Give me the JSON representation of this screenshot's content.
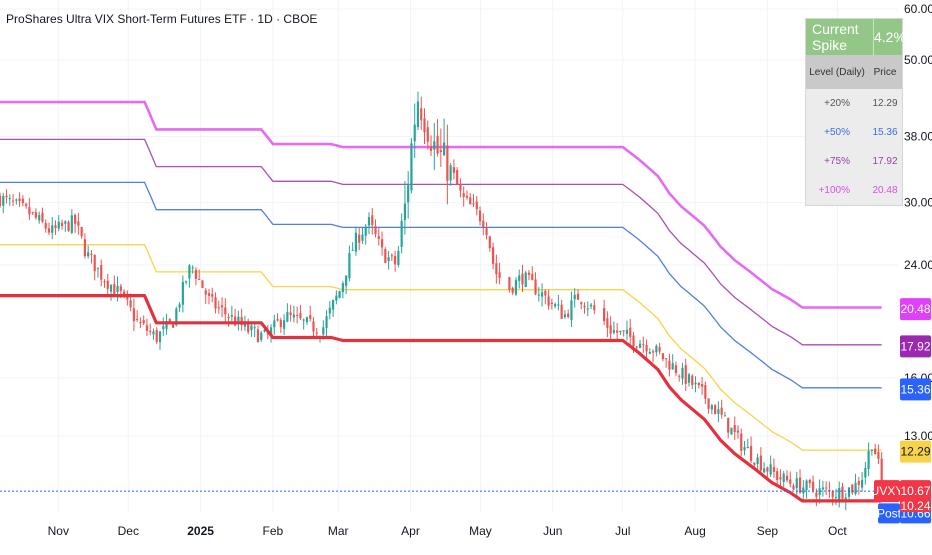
{
  "title": "ProShares Ultra VIX Short-Term Futures ETF · 1D · CBOE",
  "colors": {
    "support": "#e5313b",
    "level20": "#f7d44a",
    "level50": "#4f7fe0",
    "level75": "#a94fb5",
    "level100": "#e36cf0",
    "up": "#26a69a",
    "down": "#ef5350"
  },
  "spike_table": {
    "header_label": "Current Spike",
    "header_value": "4.2%",
    "col_level": "Level (Daily)",
    "col_price": "Price",
    "rows": [
      {
        "level": "+20%",
        "price": "12.29",
        "color": "#555555"
      },
      {
        "level": "+50%",
        "price": "15.36",
        "color": "#3d6fe0"
      },
      {
        "level": "+75%",
        "price": "17.92",
        "color": "#9b3fb0"
      },
      {
        "level": "+100%",
        "price": "20.48",
        "color": "#d94fe6"
      }
    ]
  },
  "price_tags": [
    {
      "label": "20.48",
      "value": 20.48,
      "bg": "#e040fb",
      "fg": "#ffffff"
    },
    {
      "label": "17.92",
      "value": 17.92,
      "bg": "#9c27b0",
      "fg": "#ffffff"
    },
    {
      "label": "15.36",
      "value": 15.36,
      "bg": "#2962ff",
      "fg": "#ffffff"
    },
    {
      "label": "12.29",
      "value": 12.29,
      "bg": "#f9d347",
      "fg": "#131722"
    }
  ],
  "symbol_tag": {
    "symbol": "UVXY",
    "price": "10.67",
    "value": 10.67,
    "bg": "#f23645"
  },
  "post_tag": {
    "label": "Post",
    "price": "10.66",
    "value": 10.66,
    "bg": "#2962ff"
  },
  "low_tag": {
    "price": "10.24",
    "value": 10.24,
    "bg": "#f23645"
  },
  "chart_data": {
    "type": "candlestick",
    "y_scale": "log",
    "ylim": [
      9.9,
      62
    ],
    "y_ticks": [
      {
        "label": "60.00",
        "value": 60
      },
      {
        "label": "50.00",
        "value": 50
      },
      {
        "label": "38.00",
        "value": 38
      },
      {
        "label": "30.00",
        "value": 30
      },
      {
        "label": "24.00",
        "value": 24
      },
      {
        "label": "16.00",
        "value": 16
      },
      {
        "label": "13.00",
        "value": 13
      }
    ],
    "x_ticks": [
      {
        "label": "Nov",
        "day": 13,
        "bold": false
      },
      {
        "label": "Dec",
        "day": 43,
        "bold": false
      },
      {
        "label": "2025",
        "day": 74,
        "bold": true
      },
      {
        "label": "Feb",
        "day": 105,
        "bold": false
      },
      {
        "label": "Mar",
        "day": 133,
        "bold": false
      },
      {
        "label": "Apr",
        "day": 164,
        "bold": false
      },
      {
        "label": "May",
        "day": 194,
        "bold": false
      },
      {
        "label": "Jun",
        "day": 225,
        "bold": false
      },
      {
        "label": "Jul",
        "day": 255,
        "bold": false
      },
      {
        "label": "Aug",
        "day": 286,
        "bold": false
      },
      {
        "label": "Sep",
        "day": 317,
        "bold": false
      },
      {
        "label": "Oct",
        "day": 347,
        "bold": false
      }
    ],
    "x_range_days": [
      -12,
      373
    ],
    "close_anchors": [
      [
        -12,
        30.5
      ],
      [
        0,
        29
      ],
      [
        10,
        27
      ],
      [
        20,
        28
      ],
      [
        25,
        25
      ],
      [
        32,
        23
      ],
      [
        40,
        21.5
      ],
      [
        47,
        19.5
      ],
      [
        55,
        18.5
      ],
      [
        62,
        19.5
      ],
      [
        70,
        24
      ],
      [
        78,
        21
      ],
      [
        86,
        20
      ],
      [
        94,
        19
      ],
      [
        102,
        18.5
      ],
      [
        110,
        20
      ],
      [
        118,
        19.5
      ],
      [
        126,
        19
      ],
      [
        134,
        22
      ],
      [
        140,
        26
      ],
      [
        146,
        28
      ],
      [
        152,
        25
      ],
      [
        158,
        24
      ],
      [
        162,
        30
      ],
      [
        167,
        44
      ],
      [
        171,
        40
      ],
      [
        175,
        36
      ],
      [
        181,
        34
      ],
      [
        186,
        30.5
      ],
      [
        192,
        29
      ],
      [
        196,
        28
      ],
      [
        200,
        23.5
      ],
      [
        206,
        22
      ],
      [
        212,
        23
      ],
      [
        218,
        22
      ],
      [
        224,
        21
      ],
      [
        230,
        20
      ],
      [
        236,
        21.5
      ],
      [
        242,
        20.5
      ],
      [
        250,
        19
      ],
      [
        258,
        18.5
      ],
      [
        266,
        18
      ],
      [
        274,
        17
      ],
      [
        282,
        16
      ],
      [
        290,
        15
      ],
      [
        298,
        13.8
      ],
      [
        306,
        12.6
      ],
      [
        314,
        11.8
      ],
      [
        322,
        11.2
      ],
      [
        330,
        10.9
      ],
      [
        338,
        10.7
      ],
      [
        346,
        10.6
      ],
      [
        354,
        10.8
      ],
      [
        358,
        11.3
      ],
      [
        362,
        12.8
      ],
      [
        365,
        11.5
      ],
      [
        366,
        10.67
      ]
    ],
    "gaps": [
      [
        203,
        206
      ],
      [
        243,
        246
      ]
    ],
    "support_line": [
      [
        -12,
        21.5
      ],
      [
        50,
        21.5
      ],
      [
        55,
        19.5
      ],
      [
        100,
        19.5
      ],
      [
        105,
        18.5
      ],
      [
        130,
        18.5
      ],
      [
        135,
        18.3
      ],
      [
        255,
        18.3
      ],
      [
        262,
        17.5
      ],
      [
        270,
        16.5
      ],
      [
        275,
        15.5
      ],
      [
        280,
        14.8
      ],
      [
        290,
        13.8
      ],
      [
        297,
        12.8
      ],
      [
        303,
        12.2
      ],
      [
        311,
        11.6
      ],
      [
        319,
        11.0
      ],
      [
        327,
        10.6
      ],
      [
        332,
        10.3
      ],
      [
        366,
        10.3
      ]
    ],
    "series": [
      {
        "name": "+20%",
        "value_note": "support level × 1.2"
      },
      {
        "name": "+50%",
        "value_note": "support level × 1.5"
      },
      {
        "name": "+75%",
        "value_note": "support level × 1.75"
      },
      {
        "name": "+100%",
        "value_note": "support level × 2.0"
      }
    ],
    "last_close": 10.67,
    "post_close": 10.66,
    "current_spike_pct": 4.2
  }
}
